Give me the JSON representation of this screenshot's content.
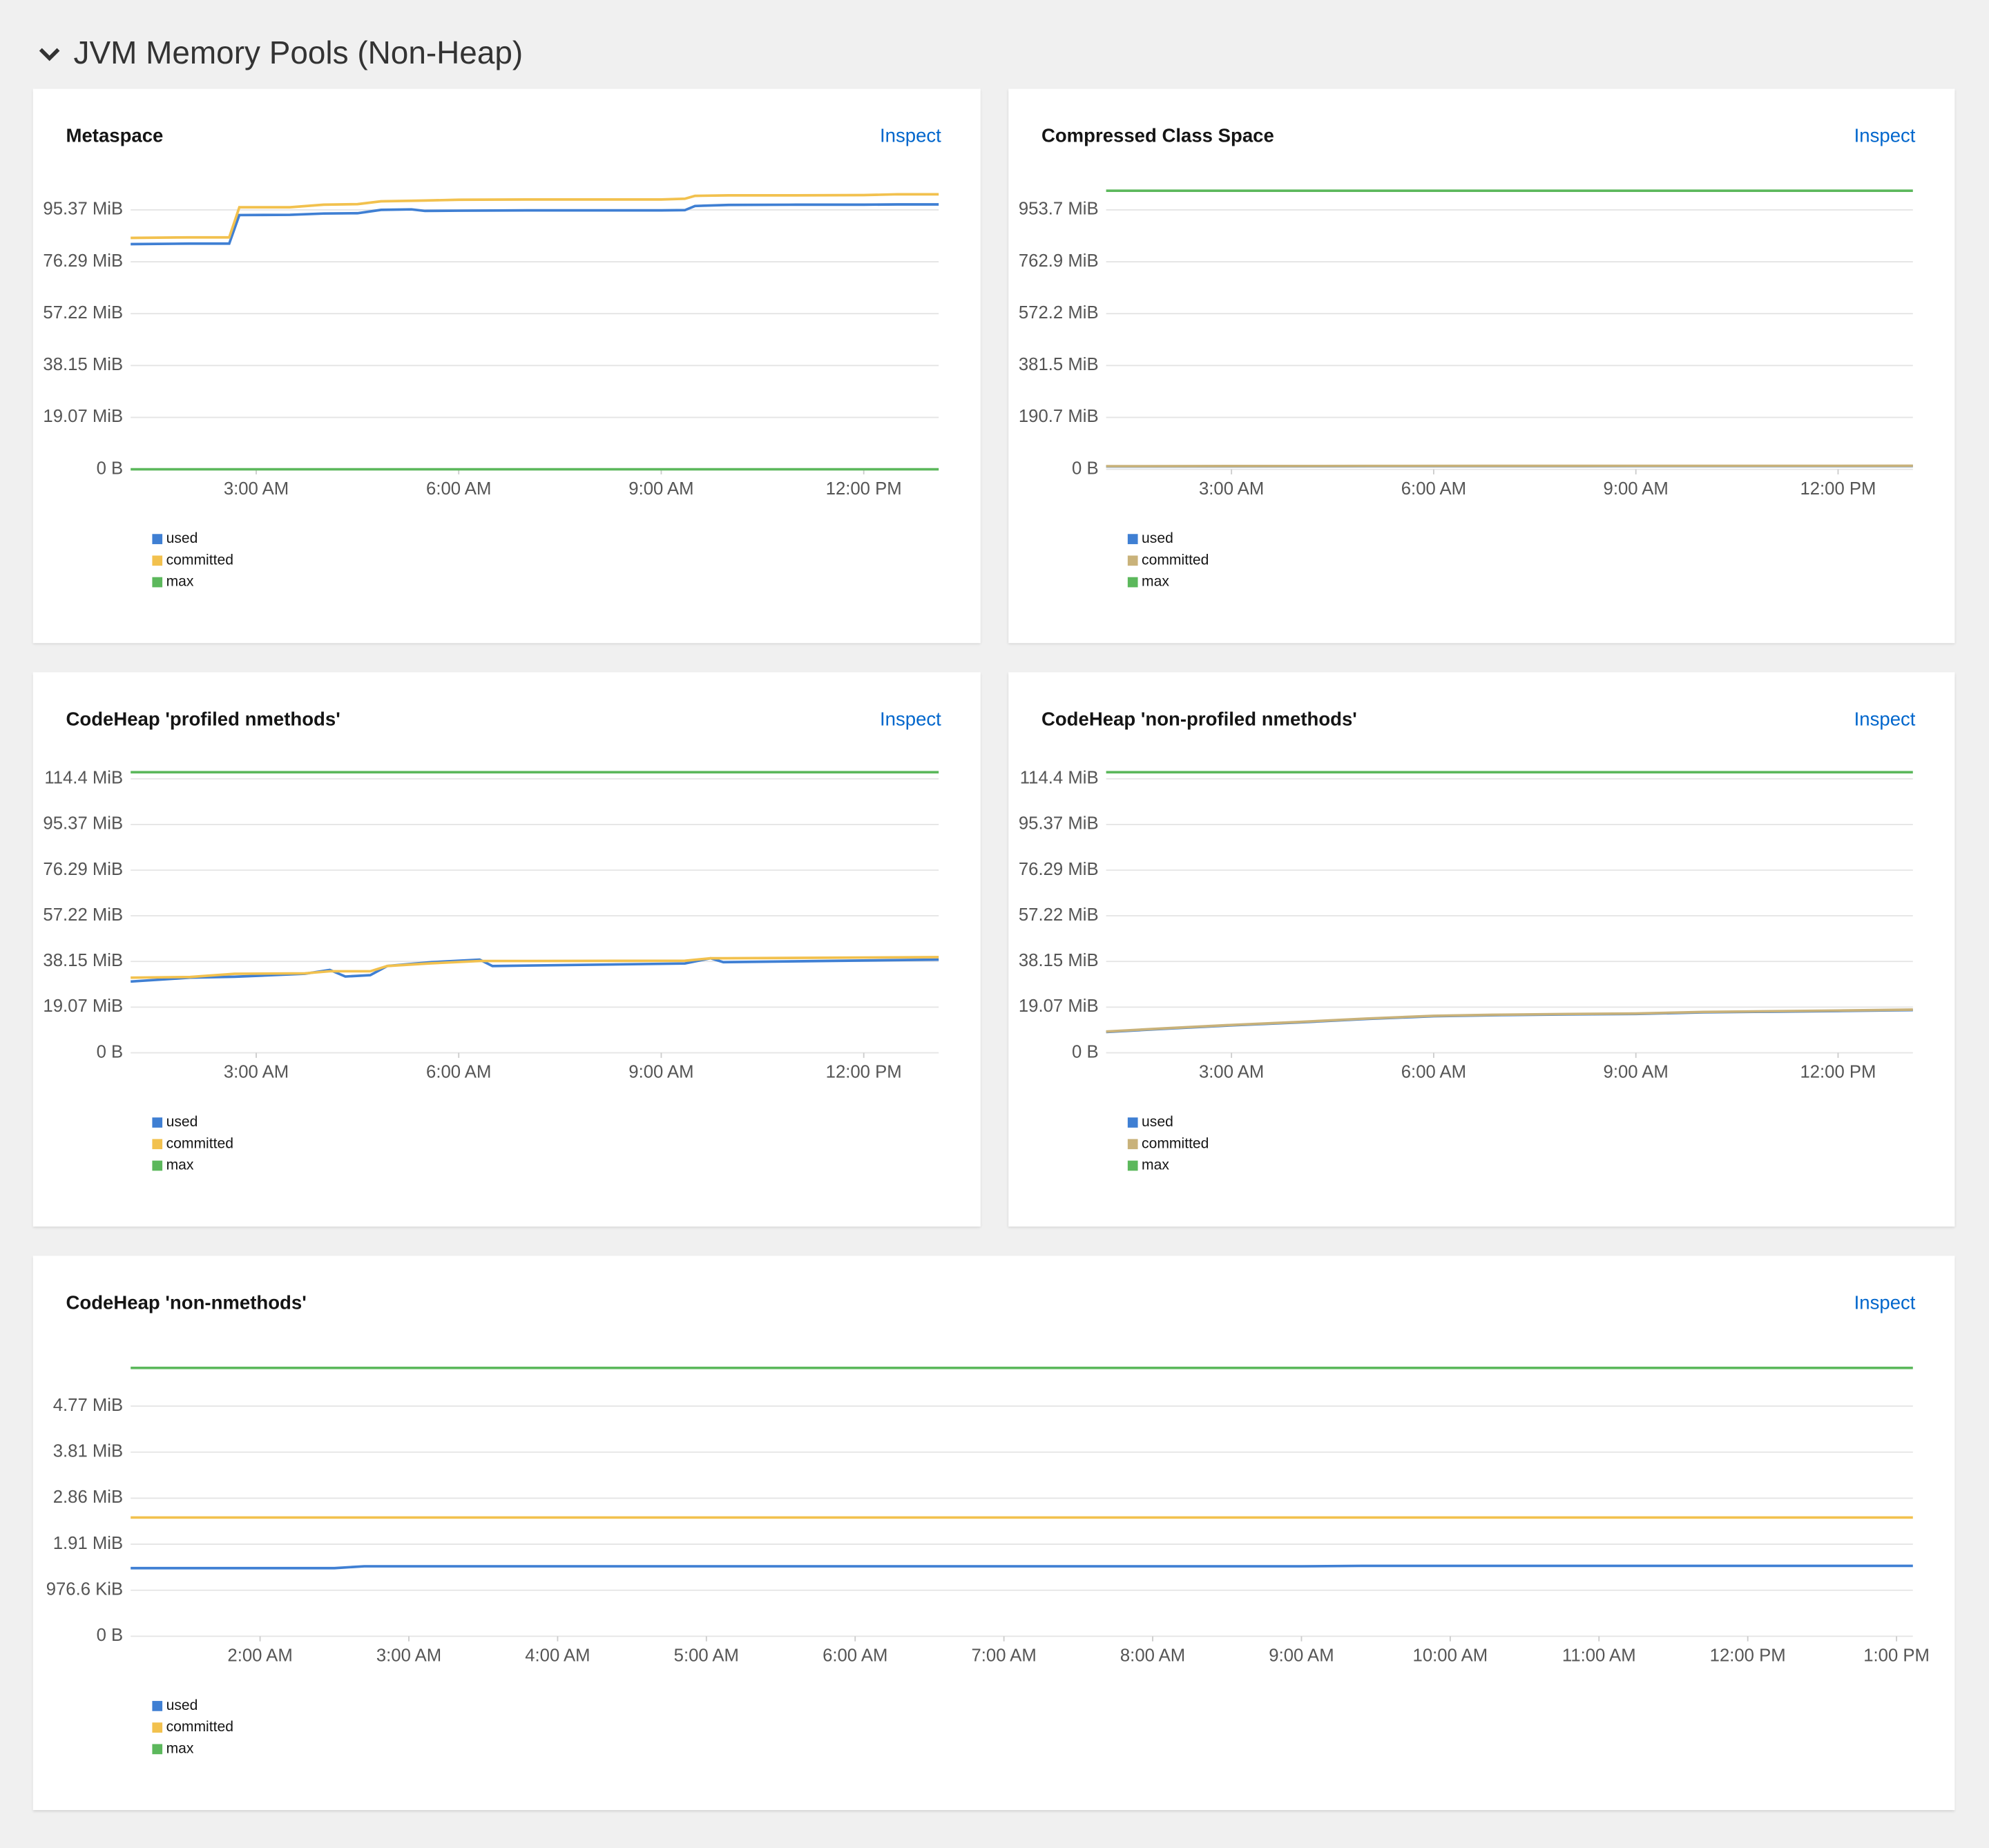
{
  "header": {
    "title": "JVM Memory Pools (Non-Heap)"
  },
  "chart_data": [
    {
      "type": "line",
      "title": "Metaspace",
      "link": "Inspect",
      "x": [
        1.14,
        2.0,
        2.6,
        2.75,
        3.5,
        4.0,
        4.5,
        4.85,
        5.3,
        5.5,
        6.0,
        7.0,
        8.0,
        9.0,
        9.35,
        9.5,
        10.0,
        11.0,
        12.0,
        12.5,
        13.11
      ],
      "xlim": [
        1.14,
        13.11
      ],
      "xticks": [
        {
          "value": 3,
          "label": "3:00 AM"
        },
        {
          "value": 6,
          "label": "6:00 AM"
        },
        {
          "value": 9,
          "label": "9:00 AM"
        },
        {
          "value": 12,
          "label": "12:00 PM"
        }
      ],
      "ylim": [
        0,
        110000000
      ],
      "yticks": [
        {
          "value": 0,
          "label": "0 B"
        },
        {
          "value": 20000000,
          "label": "19.07 MiB"
        },
        {
          "value": 40000000,
          "label": "38.15 MiB"
        },
        {
          "value": 60000000,
          "label": "57.22 MiB"
        },
        {
          "value": 80000000,
          "label": "76.29 MiB"
        },
        {
          "value": 100000000,
          "label": "95.37 MiB"
        }
      ],
      "grid": true,
      "series": [
        {
          "name": "used",
          "color": "#3f7fd3",
          "values": [
            86800000,
            87000000,
            87000000,
            98000000,
            98100000,
            98600000,
            98700000,
            100000000,
            100200000,
            99600000,
            99700000,
            99800000,
            99800000,
            99800000,
            99900000,
            101500000,
            101900000,
            102000000,
            102000000,
            102100000,
            102100000
          ]
        },
        {
          "name": "committed",
          "color": "#f2c14e",
          "values": [
            89200000,
            89400000,
            89400000,
            101000000,
            101000000,
            102000000,
            102200000,
            103300000,
            103500000,
            103600000,
            103900000,
            104000000,
            104000000,
            104000000,
            104300000,
            105400000,
            105600000,
            105600000,
            105700000,
            106000000,
            106000000
          ]
        },
        {
          "name": "max",
          "color": "#5cb85c",
          "values": [
            0,
            0,
            0,
            0,
            0,
            0,
            0,
            0,
            0,
            0,
            0,
            0,
            0,
            0,
            0,
            0,
            0,
            0,
            0,
            0,
            0
          ]
        }
      ]
    },
    {
      "type": "line",
      "title": "Compressed Class Space",
      "link": "Inspect",
      "x": [
        1.14,
        3,
        5,
        7,
        9,
        11,
        13.11
      ],
      "xlim": [
        1.14,
        13.11
      ],
      "xticks": [
        {
          "value": 3,
          "label": "3:00 AM"
        },
        {
          "value": 6,
          "label": "6:00 AM"
        },
        {
          "value": 9,
          "label": "9:00 AM"
        },
        {
          "value": 12,
          "label": "12:00 PM"
        }
      ],
      "ylim": [
        0,
        1100000000
      ],
      "yticks": [
        {
          "value": 0,
          "label": "0 B"
        },
        {
          "value": 200000000,
          "label": "190.7 MiB"
        },
        {
          "value": 400000000,
          "label": "381.5 MiB"
        },
        {
          "value": 600000000,
          "label": "572.2 MiB"
        },
        {
          "value": 800000000,
          "label": "762.9 MiB"
        },
        {
          "value": 1000000000,
          "label": "953.7 MiB"
        }
      ],
      "grid": true,
      "series": [
        {
          "name": "used",
          "color": "#3f7fd3",
          "values": [
            11000000,
            11500000,
            12000000,
            12200000,
            12300000,
            12400000,
            12500000
          ]
        },
        {
          "name": "committed",
          "color": "#c9b27a",
          "values": [
            12000000,
            12500000,
            13000000,
            13200000,
            13300000,
            13400000,
            13500000
          ]
        },
        {
          "name": "max",
          "color": "#5cb85c",
          "values": [
            1073741824,
            1073741824,
            1073741824,
            1073741824,
            1073741824,
            1073741824,
            1073741824
          ]
        }
      ]
    },
    {
      "type": "line",
      "title": "CodeHeap 'profiled nmethods'",
      "link": "Inspect",
      "x": [
        1.14,
        2.02,
        2.68,
        3.72,
        4.09,
        4.32,
        4.69,
        4.94,
        5.6,
        6.31,
        6.5,
        9.35,
        9.73,
        9.92,
        13.11
      ],
      "xlim": [
        1.14,
        13.11
      ],
      "xticks": [
        {
          "value": 3,
          "label": "3:00 AM"
        },
        {
          "value": 6,
          "label": "6:00 AM"
        },
        {
          "value": 9,
          "label": "9:00 AM"
        },
        {
          "value": 12,
          "label": "12:00 PM"
        }
      ],
      "ylim": [
        0,
        125000000
      ],
      "yticks": [
        {
          "value": 0,
          "label": "0 B"
        },
        {
          "value": 20000000,
          "label": "19.07 MiB"
        },
        {
          "value": 40000000,
          "label": "38.15 MiB"
        },
        {
          "value": 60000000,
          "label": "57.22 MiB"
        },
        {
          "value": 80000000,
          "label": "76.29 MiB"
        },
        {
          "value": 100000000,
          "label": "95.37 MiB"
        },
        {
          "value": 120000000,
          "label": "114.4 MiB"
        }
      ],
      "grid": true,
      "series": [
        {
          "name": "used",
          "color": "#3f7fd3",
          "values": [
            31200000,
            32900000,
            33300000,
            34600000,
            36300000,
            33400000,
            34000000,
            38000000,
            39700000,
            40800000,
            38000000,
            39100000,
            41400000,
            39700000,
            40800000
          ]
        },
        {
          "name": "committed",
          "color": "#f2c14e",
          "values": [
            32900000,
            33200000,
            34600000,
            34800000,
            35700000,
            35700000,
            35700000,
            38000000,
            39200000,
            40200000,
            40200000,
            40300000,
            41400000,
            41400000,
            41900000
          ]
        },
        {
          "name": "max",
          "color": "#5cb85c",
          "values": [
            122900000,
            122900000,
            122900000,
            122900000,
            122900000,
            122900000,
            122900000,
            122900000,
            122900000,
            122900000,
            122900000,
            122900000,
            122900000,
            122900000,
            122900000
          ]
        }
      ]
    },
    {
      "type": "line",
      "title": "CodeHeap 'non-profiled nmethods'",
      "link": "Inspect",
      "x": [
        1.14,
        2,
        3,
        4,
        5,
        6,
        7,
        8,
        9,
        10,
        11,
        12,
        13.11
      ],
      "xlim": [
        1.14,
        13.11
      ],
      "xticks": [
        {
          "value": 3,
          "label": "3:00 AM"
        },
        {
          "value": 6,
          "label": "6:00 AM"
        },
        {
          "value": 9,
          "label": "9:00 AM"
        },
        {
          "value": 12,
          "label": "12:00 PM"
        }
      ],
      "ylim": [
        0,
        125000000
      ],
      "yticks": [
        {
          "value": 0,
          "label": "0 B"
        },
        {
          "value": 20000000,
          "label": "19.07 MiB"
        },
        {
          "value": 40000000,
          "label": "38.15 MiB"
        },
        {
          "value": 60000000,
          "label": "57.22 MiB"
        },
        {
          "value": 80000000,
          "label": "76.29 MiB"
        },
        {
          "value": 100000000,
          "label": "95.37 MiB"
        },
        {
          "value": 120000000,
          "label": "114.4 MiB"
        }
      ],
      "grid": true,
      "series": [
        {
          "name": "used",
          "color": "#3f7fd3",
          "values": [
            9100000,
            10500000,
            12000000,
            13300000,
            14800000,
            16000000,
            16500000,
            16800000,
            17000000,
            17700000,
            18000000,
            18300000,
            18700000
          ]
        },
        {
          "name": "committed",
          "color": "#c9b27a",
          "values": [
            9300000,
            10700000,
            12200000,
            13500000,
            15000000,
            16200000,
            16700000,
            17000000,
            17200000,
            17900000,
            18200000,
            18500000,
            18900000
          ]
        },
        {
          "name": "max",
          "color": "#5cb85c",
          "values": [
            122900000,
            122900000,
            122900000,
            122900000,
            122900000,
            122900000,
            122900000,
            122900000,
            122900000,
            122900000,
            122900000,
            122900000,
            122900000
          ]
        }
      ]
    },
    {
      "type": "line",
      "title": "CodeHeap 'non-nmethods'",
      "link": "Inspect",
      "x": [
        1.13,
        2.5,
        2.7,
        3,
        5,
        7,
        9,
        9.4,
        11,
        13.11
      ],
      "xlim": [
        1.13,
        13.11
      ],
      "xticks": [
        {
          "value": 2,
          "label": "2:00 AM"
        },
        {
          "value": 3,
          "label": "3:00 AM"
        },
        {
          "value": 4,
          "label": "4:00 AM"
        },
        {
          "value": 5,
          "label": "5:00 AM"
        },
        {
          "value": 6,
          "label": "6:00 AM"
        },
        {
          "value": 7,
          "label": "7:00 AM"
        },
        {
          "value": 8,
          "label": "8:00 AM"
        },
        {
          "value": 9,
          "label": "9:00 AM"
        },
        {
          "value": 10,
          "label": "10:00 AM"
        },
        {
          "value": 11,
          "label": "11:00 AM"
        },
        {
          "value": 12,
          "label": "12:00 PM"
        },
        {
          "value": 13,
          "label": "1:00 PM"
        }
      ],
      "ylim": [
        0,
        6200000
      ],
      "yticks": [
        {
          "value": 0,
          "label": "0 B"
        },
        {
          "value": 1000000,
          "label": "976.6 KiB"
        },
        {
          "value": 2000000,
          "label": "1.91 MiB"
        },
        {
          "value": 3000000,
          "label": "2.86 MiB"
        },
        {
          "value": 4000000,
          "label": "3.81 MiB"
        },
        {
          "value": 5000000,
          "label": "4.77 MiB"
        }
      ],
      "grid": true,
      "series": [
        {
          "name": "used",
          "color": "#3f7fd3",
          "values": [
            1480000,
            1480000,
            1520000,
            1520000,
            1520000,
            1520000,
            1520000,
            1530000,
            1530000,
            1530000
          ]
        },
        {
          "name": "committed",
          "color": "#f2c14e",
          "values": [
            2580000,
            2580000,
            2580000,
            2580000,
            2580000,
            2580000,
            2580000,
            2580000,
            2580000,
            2580000
          ]
        },
        {
          "name": "max",
          "color": "#5cb85c",
          "values": [
            5830000,
            5830000,
            5830000,
            5830000,
            5830000,
            5830000,
            5830000,
            5830000,
            5830000,
            5830000
          ]
        }
      ]
    }
  ]
}
